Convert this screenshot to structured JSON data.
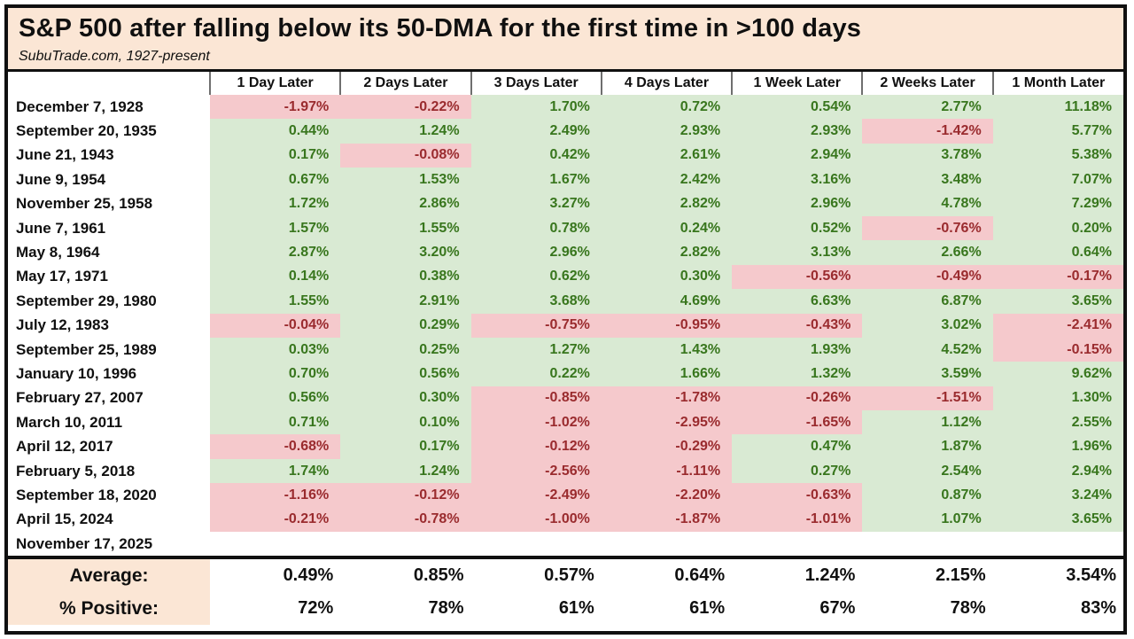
{
  "chart_data": {
    "type": "table",
    "title": "S&P 500 after falling below its 50-DMA for the first time in >100 days",
    "subtitle": "SubuTrade.com, 1927-present",
    "corner_header": "",
    "columns": [
      "1 Day Later",
      "2 Days Later",
      "3 Days Later",
      "4 Days Later",
      "1 Week Later",
      "2 Weeks Later",
      "1 Month Later"
    ],
    "rows": [
      {
        "date": "December 7, 1928",
        "values": [
          "-1.97%",
          "-0.22%",
          "1.70%",
          "0.72%",
          "0.54%",
          "2.77%",
          "11.18%"
        ]
      },
      {
        "date": "September 20, 1935",
        "values": [
          "0.44%",
          "1.24%",
          "2.49%",
          "2.93%",
          "2.93%",
          "-1.42%",
          "5.77%"
        ]
      },
      {
        "date": "June 21, 1943",
        "values": [
          "0.17%",
          "-0.08%",
          "0.42%",
          "2.61%",
          "2.94%",
          "3.78%",
          "5.38%"
        ]
      },
      {
        "date": "June 9, 1954",
        "values": [
          "0.67%",
          "1.53%",
          "1.67%",
          "2.42%",
          "3.16%",
          "3.48%",
          "7.07%"
        ]
      },
      {
        "date": "November 25, 1958",
        "values": [
          "1.72%",
          "2.86%",
          "3.27%",
          "2.82%",
          "2.96%",
          "4.78%",
          "7.29%"
        ]
      },
      {
        "date": "June 7, 1961",
        "values": [
          "1.57%",
          "1.55%",
          "0.78%",
          "0.24%",
          "0.52%",
          "-0.76%",
          "0.20%"
        ]
      },
      {
        "date": "May 8, 1964",
        "values": [
          "2.87%",
          "3.20%",
          "2.96%",
          "2.82%",
          "3.13%",
          "2.66%",
          "0.64%"
        ]
      },
      {
        "date": "May 17, 1971",
        "values": [
          "0.14%",
          "0.38%",
          "0.62%",
          "0.30%",
          "-0.56%",
          "-0.49%",
          "-0.17%"
        ]
      },
      {
        "date": "September 29, 1980",
        "values": [
          "1.55%",
          "2.91%",
          "3.68%",
          "4.69%",
          "6.63%",
          "6.87%",
          "3.65%"
        ]
      },
      {
        "date": "July 12, 1983",
        "values": [
          "-0.04%",
          "0.29%",
          "-0.75%",
          "-0.95%",
          "-0.43%",
          "3.02%",
          "-2.41%"
        ]
      },
      {
        "date": "September 25, 1989",
        "values": [
          "0.03%",
          "0.25%",
          "1.27%",
          "1.43%",
          "1.93%",
          "4.52%",
          "-0.15%"
        ]
      },
      {
        "date": "January 10, 1996",
        "values": [
          "0.70%",
          "0.56%",
          "0.22%",
          "1.66%",
          "1.32%",
          "3.59%",
          "9.62%"
        ]
      },
      {
        "date": "February 27, 2007",
        "values": [
          "0.56%",
          "0.30%",
          "-0.85%",
          "-1.78%",
          "-0.26%",
          "-1.51%",
          "1.30%"
        ]
      },
      {
        "date": "March 10, 2011",
        "values": [
          "0.71%",
          "0.10%",
          "-1.02%",
          "-2.95%",
          "-1.65%",
          "1.12%",
          "2.55%"
        ]
      },
      {
        "date": "April 12, 2017",
        "values": [
          "-0.68%",
          "0.17%",
          "-0.12%",
          "-0.29%",
          "0.47%",
          "1.87%",
          "1.96%"
        ]
      },
      {
        "date": "February 5, 2018",
        "values": [
          "1.74%",
          "1.24%",
          "-2.56%",
          "-1.11%",
          "0.27%",
          "2.54%",
          "2.94%"
        ]
      },
      {
        "date": "September 18, 2020",
        "values": [
          "-1.16%",
          "-0.12%",
          "-2.49%",
          "-2.20%",
          "-0.63%",
          "0.87%",
          "3.24%"
        ]
      },
      {
        "date": "April 15, 2024",
        "values": [
          "-0.21%",
          "-0.78%",
          "-1.00%",
          "-1.87%",
          "-1.01%",
          "1.07%",
          "3.65%"
        ]
      },
      {
        "date": "November 17, 2025",
        "values": [
          "",
          "",
          "",
          "",
          "",
          "",
          ""
        ]
      }
    ],
    "summary": [
      {
        "label": "Average:",
        "values": [
          "0.49%",
          "0.85%",
          "0.57%",
          "0.64%",
          "1.24%",
          "2.15%",
          "3.54%"
        ]
      },
      {
        "label": "% Positive:",
        "values": [
          "72%",
          "78%",
          "61%",
          "61%",
          "67%",
          "78%",
          "83%"
        ]
      }
    ],
    "layout_hints": {
      "positive_cells": "green background, dark green text",
      "negative_cells": "pink background, dark red text",
      "grid": "off"
    }
  },
  "colors": {
    "header_bg": "#fbe6d5",
    "positive_bg": "#d9ead3",
    "negative_bg": "#f5c9cc",
    "positive_text": "#38761d",
    "negative_text": "#9a2b2e"
  }
}
